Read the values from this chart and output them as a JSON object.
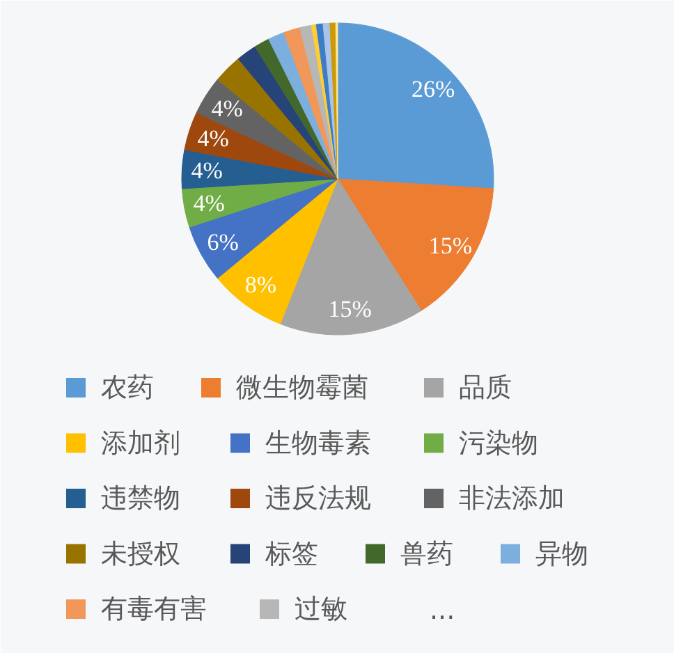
{
  "chart_data": {
    "type": "pie",
    "categories": [
      "农药",
      "微生物霉菌",
      "品质",
      "添加剂",
      "生物毒素",
      "污染物",
      "违禁物",
      "违反法规",
      "非法添加",
      "未授权",
      "标签",
      "兽药",
      "异物",
      "有毒有害",
      "过敏",
      null,
      null,
      null,
      null,
      null
    ],
    "values": [
      26,
      15,
      15,
      8,
      6,
      4,
      4,
      4,
      4,
      3,
      2.1,
      1.6,
      1.7,
      1.7,
      1.2,
      0.5,
      0.7,
      0.7,
      0.6,
      0.2
    ],
    "colors": [
      "#5b9bd5",
      "#ed7d31",
      "#a5a5a5",
      "#ffc000",
      "#4472c4",
      "#70ad47",
      "#255e91",
      "#9e480e",
      "#636363",
      "#997300",
      "#264478",
      "#43682b",
      "#7cafdd",
      "#f1975a",
      "#b7b7b7",
      "#ffcd33",
      "#3c7dc8",
      "#a9c4e8",
      "#cc9a06",
      "#ffe699"
    ],
    "value_labels": [
      "26%",
      "15%",
      "15%",
      "8%",
      "6%",
      "4%",
      "4%",
      "4%",
      "4%",
      null,
      null,
      null,
      null,
      null,
      null,
      null,
      null,
      null,
      null,
      null
    ],
    "legend": "bottom",
    "annotations": [
      "..."
    ]
  }
}
